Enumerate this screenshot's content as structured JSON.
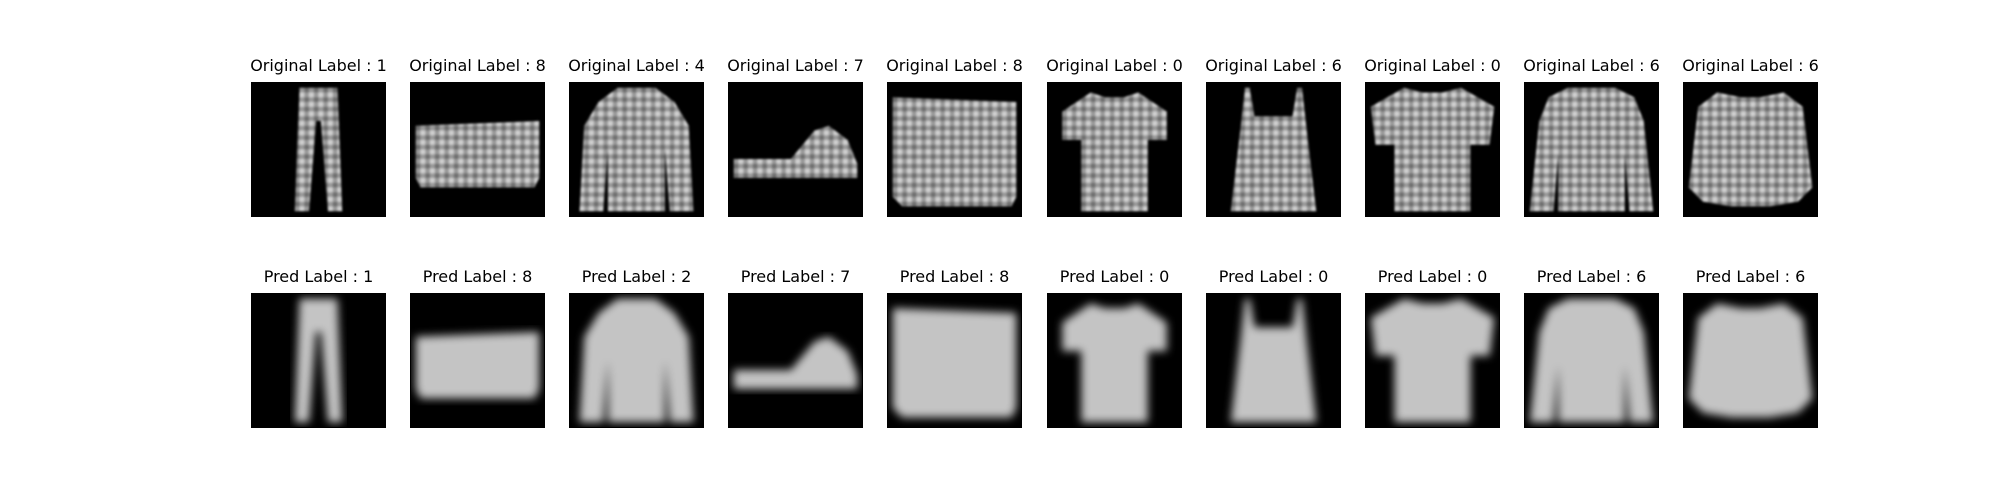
{
  "rows": [
    {
      "row_kind": "original",
      "panels": [
        {
          "title": "Original Label : 1",
          "garment": "trouser"
        },
        {
          "title": "Original Label : 8",
          "garment": "bag"
        },
        {
          "title": "Original Label : 4",
          "garment": "coat"
        },
        {
          "title": "Original Label : 7",
          "garment": "sneaker"
        },
        {
          "title": "Original Label : 8",
          "garment": "bag-square"
        },
        {
          "title": "Original Label : 0",
          "garment": "tshirt"
        },
        {
          "title": "Original Label : 6",
          "garment": "tank"
        },
        {
          "title": "Original Label : 0",
          "garment": "polo"
        },
        {
          "title": "Original Label : 6",
          "garment": "plaid-shirt"
        },
        {
          "title": "Original Label : 6",
          "garment": "blouse"
        }
      ]
    },
    {
      "row_kind": "prediction",
      "panels": [
        {
          "title": "Pred Label : 1",
          "garment": "trouser"
        },
        {
          "title": "Pred Label : 8",
          "garment": "bag"
        },
        {
          "title": "Pred Label : 2",
          "garment": "coat"
        },
        {
          "title": "Pred Label : 7",
          "garment": "sneaker"
        },
        {
          "title": "Pred Label : 8",
          "garment": "bag-square"
        },
        {
          "title": "Pred Label : 0",
          "garment": "tshirt"
        },
        {
          "title": "Pred Label : 0",
          "garment": "tank"
        },
        {
          "title": "Pred Label : 0",
          "garment": "polo"
        },
        {
          "title": "Pred Label : 6",
          "garment": "plaid-shirt"
        },
        {
          "title": "Pred Label : 6",
          "garment": "blouse"
        }
      ]
    }
  ]
}
